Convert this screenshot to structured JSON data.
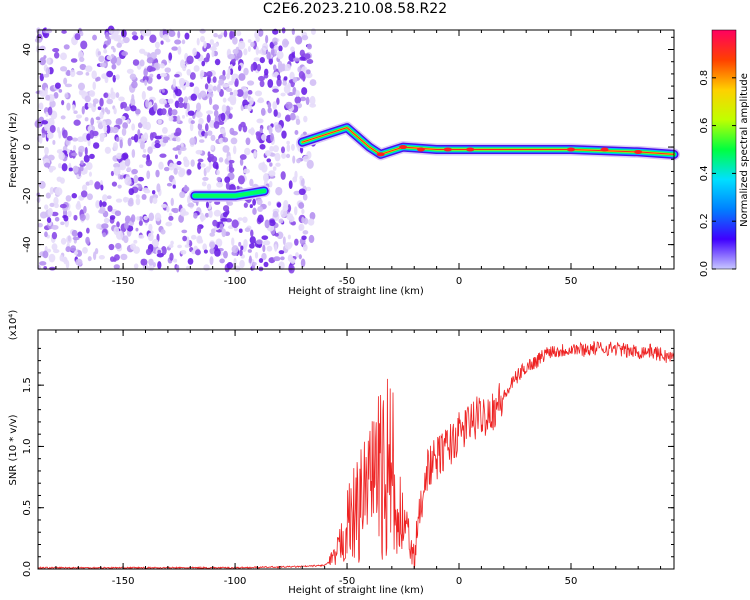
{
  "title": "C2E6.2023.210.08.58.R22",
  "colors": {
    "snr_line": "#ee2222",
    "spectrum_dots": "#a066ee",
    "axis": "#000000"
  },
  "chart_data": [
    {
      "type": "heatmap",
      "title": "C2E6.2023.210.08.58.R22",
      "xlabel": "Height of straight line (km)",
      "ylabel": "Frequency (Hz)",
      "xlim": [
        -188,
        96
      ],
      "ylim": [
        -50,
        48
      ],
      "xticks": [
        -150,
        -100,
        -50,
        0,
        50
      ],
      "yticks": [
        -40,
        -20,
        0,
        20,
        40
      ],
      "colorbar": {
        "label": "Normalized spectral amplitude",
        "range": [
          0,
          1
        ],
        "ticks": [
          "0.0",
          "0.2",
          "0.4",
          "0.6",
          "0.8"
        ],
        "colormap": [
          "#c8c8ff",
          "#3f00ff",
          "#0080ff",
          "#00e0ff",
          "#00ff40",
          "#c0ff00",
          "#ffd000",
          "#ff4000",
          "#ff0060"
        ]
      },
      "noise_region": {
        "x_range": [
          -188,
          -65
        ],
        "frequency_range": [
          -50,
          48
        ]
      },
      "ridge_points": [
        {
          "x": -118,
          "y": -20
        },
        {
          "x": -100,
          "y": -20
        },
        {
          "x": -87,
          "y": -18
        },
        {
          "x": -70,
          "y": 2
        },
        {
          "x": -60,
          "y": 5
        },
        {
          "x": -50,
          "y": 8
        },
        {
          "x": -40,
          "y": 0
        },
        {
          "x": -35,
          "y": -3
        },
        {
          "x": -25,
          "y": 0
        },
        {
          "x": -10,
          "y": -1
        },
        {
          "x": 0,
          "y": -1
        },
        {
          "x": 20,
          "y": -1
        },
        {
          "x": 50,
          "y": -1
        },
        {
          "x": 80,
          "y": -2
        },
        {
          "x": 96,
          "y": -3
        }
      ]
    },
    {
      "type": "line",
      "xlabel": "Height of straight line (km)",
      "ylabel": "SNR (10 * v/v)",
      "yscale_label": "(x10⁴)",
      "xlim": [
        -188,
        96
      ],
      "ylim": [
        0,
        1.95
      ],
      "xticks": [
        -150,
        -100,
        -50,
        0,
        50
      ],
      "yticks": [
        "0.0",
        "0.5",
        "1.0",
        "1.5"
      ],
      "series": [
        {
          "x": [
            -188,
            -150,
            -100,
            -70,
            -60,
            -55,
            -50,
            -45,
            -40,
            -35,
            -30,
            -25,
            -20,
            -15,
            -10,
            -5,
            0,
            5,
            10,
            15,
            20,
            25,
            30,
            35,
            40,
            45,
            50,
            55,
            60,
            65,
            70,
            75,
            80,
            85,
            90,
            96
          ],
          "y": [
            0.01,
            0.01,
            0.01,
            0.02,
            0.03,
            0.1,
            0.35,
            0.5,
            0.6,
            0.8,
            0.5,
            0.4,
            0.1,
            0.8,
            0.9,
            1.0,
            1.1,
            1.2,
            1.25,
            1.3,
            1.4,
            1.55,
            1.65,
            1.7,
            1.78,
            1.78,
            1.8,
            1.79,
            1.8,
            1.8,
            1.8,
            1.78,
            1.77,
            1.78,
            1.75,
            1.72
          ]
        }
      ]
    }
  ]
}
